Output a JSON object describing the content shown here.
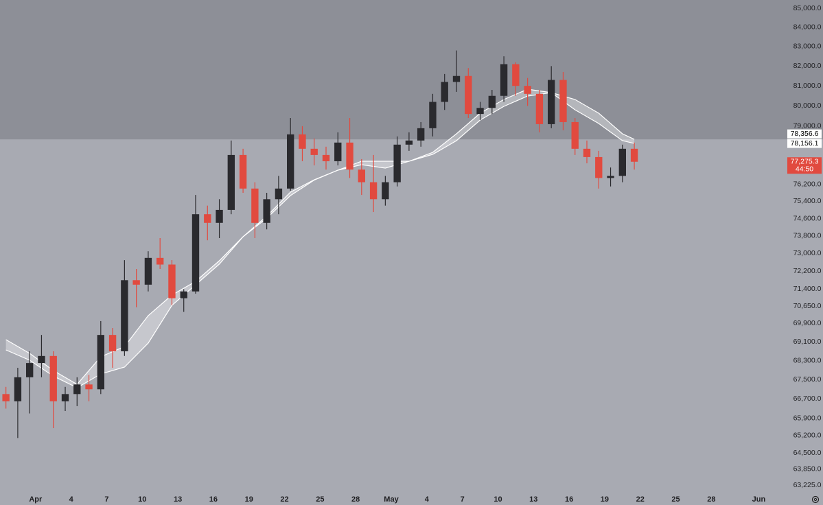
{
  "chart_data": {
    "type": "candlestick",
    "log_scale": true,
    "grid": false,
    "background": "#a8aab2",
    "shade_color": "#8d8f97",
    "up_color": "#2a2a2e",
    "down_color": "#e14a3f",
    "x": [
      "03-29",
      "03-30",
      "03-31",
      "04-01",
      "04-02",
      "04-03",
      "04-04",
      "04-05",
      "04-06",
      "04-07",
      "04-08",
      "04-09",
      "04-10",
      "04-11",
      "04-12",
      "04-13",
      "04-14",
      "04-15",
      "04-16",
      "04-17",
      "04-18",
      "04-19",
      "04-20",
      "04-21",
      "04-22",
      "04-23",
      "04-24",
      "04-25",
      "04-26",
      "04-27",
      "04-28",
      "04-29",
      "04-30",
      "05-01",
      "05-02",
      "05-03",
      "05-04",
      "05-05",
      "05-06",
      "05-07",
      "05-08",
      "05-09",
      "05-10",
      "05-11",
      "05-12",
      "05-13",
      "05-14",
      "05-15",
      "05-16",
      "05-17",
      "05-18",
      "05-19",
      "05-20",
      "05-21"
    ],
    "open": [
      66900,
      66600,
      67600,
      68200,
      68500,
      66600,
      66900,
      67300,
      67100,
      69400,
      68700,
      71800,
      71600,
      72800,
      72500,
      71000,
      71300,
      74800,
      74400,
      75000,
      77600,
      76000,
      74400,
      75500,
      76000,
      78600,
      77900,
      77600,
      77300,
      78200,
      76900,
      76300,
      75500,
      76300,
      78100,
      78300,
      78900,
      80200,
      81200,
      81500,
      79600,
      79900,
      80500,
      82100,
      81000,
      80600,
      79100,
      81300,
      79200,
      77900,
      77500,
      76500,
      76600,
      77900
    ],
    "high": [
      67200,
      68000,
      68700,
      69400,
      68700,
      67200,
      67600,
      67700,
      70000,
      69700,
      72700,
      72300,
      73100,
      73700,
      72700,
      71400,
      75700,
      75200,
      75500,
      78300,
      77900,
      76300,
      75800,
      76600,
      79400,
      79000,
      78400,
      78000,
      78700,
      79400,
      77400,
      77600,
      76600,
      78500,
      78700,
      79200,
      80600,
      81600,
      82800,
      81900,
      80200,
      80800,
      82500,
      82200,
      81400,
      80800,
      82000,
      81700,
      79400,
      78300,
      77800,
      77000,
      78100,
      78200
    ],
    "low": [
      66300,
      65100,
      66100,
      67600,
      65500,
      66200,
      66400,
      66600,
      66900,
      68000,
      68500,
      70600,
      71300,
      72300,
      70700,
      70400,
      71200,
      73600,
      73700,
      74800,
      75800,
      73700,
      74100,
      74800,
      75900,
      77300,
      77100,
      76900,
      77100,
      76500,
      75700,
      74900,
      75200,
      76100,
      77800,
      78000,
      78500,
      79800,
      80700,
      79400,
      79300,
      79600,
      80200,
      80500,
      80000,
      78700,
      78900,
      78800,
      77600,
      77200,
      76000,
      76100,
      76300,
      76900
    ],
    "close": [
      66600,
      67600,
      68200,
      68500,
      66600,
      66900,
      67300,
      67100,
      69400,
      68700,
      71800,
      71600,
      72800,
      72500,
      71000,
      71300,
      74800,
      74400,
      75000,
      77600,
      76000,
      74400,
      75500,
      76000,
      78600,
      77900,
      77600,
      77300,
      78200,
      76900,
      76300,
      75500,
      76300,
      78100,
      78300,
      78900,
      80200,
      81200,
      81500,
      79600,
      79900,
      80500,
      82100,
      81000,
      80600,
      79100,
      81300,
      79200,
      77900,
      77500,
      76500,
      76600,
      77900,
      77275.3
    ],
    "ma_x": [
      "03-29",
      "03-31",
      "04-02",
      "04-04",
      "04-06",
      "04-08",
      "04-10",
      "04-12",
      "04-14",
      "04-16",
      "04-18",
      "04-20",
      "04-22",
      "04-24",
      "04-26",
      "04-28",
      "04-30",
      "05-02",
      "05-04",
      "05-06",
      "05-08",
      "05-10",
      "05-12",
      "05-14",
      "05-16",
      "05-18",
      "05-20",
      "05-21"
    ],
    "ma_lines": [
      {
        "color": "#ffffff",
        "values": [
          69197,
          68610,
          67884,
          67307,
          68464,
          68902,
          70236,
          71139,
          71747,
          72670,
          73761,
          74709,
          75832,
          76416,
          76872,
          77299,
          77299,
          77299,
          77727,
          78627,
          79638,
          80319,
          80833,
          80662,
          80319,
          79638,
          78627,
          78356.6
        ]
      },
      {
        "color": "#ffffff",
        "values": [
          68757,
          68319,
          67652,
          67164,
          67739,
          68028,
          69049,
          70687,
          71595,
          72515,
          73761,
          74614,
          75670,
          76400,
          76872,
          77135,
          76971,
          77299,
          77628,
          78292,
          79300,
          79978,
          80491,
          80662,
          79808,
          79131,
          78292,
          78156.1
        ]
      }
    ],
    "ma_fill": "rgba(255,255,255,0.35)",
    "xlim": [
      "03-29",
      "06-03"
    ],
    "ylim": [
      62449,
      85435
    ],
    "xticks": [
      {
        "value": "04-01",
        "label": "Apr"
      },
      {
        "value": "04-04",
        "label": "4"
      },
      {
        "value": "04-07",
        "label": "7"
      },
      {
        "value": "04-10",
        "label": "10"
      },
      {
        "value": "04-13",
        "label": "13"
      },
      {
        "value": "04-16",
        "label": "16"
      },
      {
        "value": "04-19",
        "label": "19"
      },
      {
        "value": "04-22",
        "label": "22"
      },
      {
        "value": "04-25",
        "label": "25"
      },
      {
        "value": "04-28",
        "label": "28"
      },
      {
        "value": "05-01",
        "label": "May"
      },
      {
        "value": "05-04",
        "label": "4"
      },
      {
        "value": "05-07",
        "label": "7"
      },
      {
        "value": "05-10",
        "label": "10"
      },
      {
        "value": "05-13",
        "label": "13"
      },
      {
        "value": "05-16",
        "label": "16"
      },
      {
        "value": "05-19",
        "label": "19"
      },
      {
        "value": "05-22",
        "label": "22"
      },
      {
        "value": "05-25",
        "label": "25"
      },
      {
        "value": "05-28",
        "label": "28"
      },
      {
        "value": "06-01",
        "label": "Jun"
      }
    ],
    "yticks": [
      {
        "value": 85000,
        "label": "85,000.0"
      },
      {
        "value": 84000,
        "label": "84,000.0"
      },
      {
        "value": 83000,
        "label": "83,000.0"
      },
      {
        "value": 82000,
        "label": "82,000.0"
      },
      {
        "value": 81000,
        "label": "81,000.0"
      },
      {
        "value": 80000,
        "label": "80,000.0"
      },
      {
        "value": 79000,
        "label": "79,000.0"
      },
      {
        "value": 76200,
        "label": "76,200.0"
      },
      {
        "value": 75400,
        "label": "75,400.0"
      },
      {
        "value": 74600,
        "label": "74,600.0"
      },
      {
        "value": 73800,
        "label": "73,800.0"
      },
      {
        "value": 73000,
        "label": "73,000.0"
      },
      {
        "value": 72200,
        "label": "72,200.0"
      },
      {
        "value": 71400,
        "label": "71,400.0"
      },
      {
        "value": 70650,
        "label": "70,650.0"
      },
      {
        "value": 69900,
        "label": "69,900.0"
      },
      {
        "value": 69100,
        "label": "69,100.0"
      },
      {
        "value": 68300,
        "label": "68,300.0"
      },
      {
        "value": 67500,
        "label": "67,500.0"
      },
      {
        "value": 66700,
        "label": "66,700.0"
      },
      {
        "value": 65900,
        "label": "65,900.0"
      },
      {
        "value": 65200,
        "label": "65,200.0"
      },
      {
        "value": 64500,
        "label": "64,500.0"
      },
      {
        "value": 63850,
        "label": "63,850.0"
      },
      {
        "value": 63225,
        "label": "63,225.0"
      }
    ],
    "price_labels": [
      {
        "value": 78356.6,
        "label": "78,356.6",
        "color": "#ffffff",
        "text_color": "#000000"
      },
      {
        "value": 78156.1,
        "label": "78,156.1",
        "color": "#ffffff",
        "text_color": "#000000"
      },
      {
        "value": 77275.3,
        "label": "77,275.3",
        "countdown": "44:50",
        "color": "#e14a3f",
        "text_color": "#ffffff"
      }
    ]
  }
}
